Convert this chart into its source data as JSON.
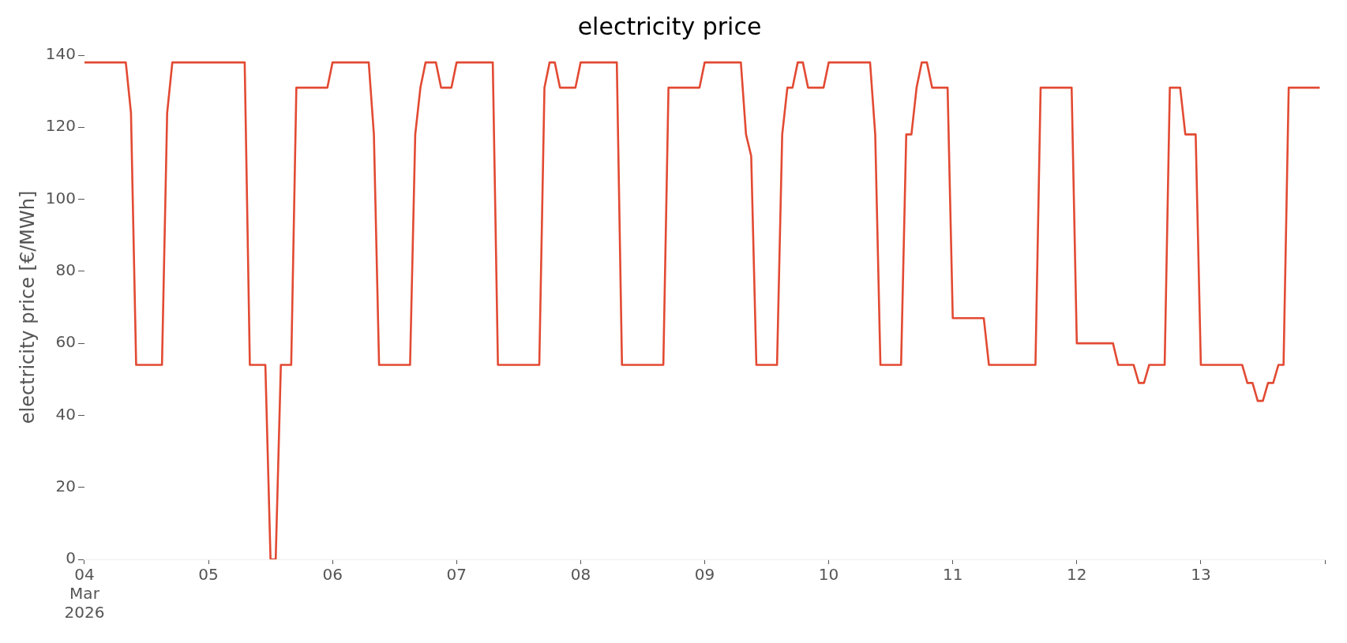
{
  "chart_data": {
    "type": "line",
    "title": "electricity price",
    "ylabel": "electricity price [€/MWh]",
    "color": "#e24a33",
    "x": [
      "2026-03-04T00:00",
      "2026-03-04T08:00",
      "2026-03-04T09:00",
      "2026-03-04T10:00",
      "2026-03-04T15:00",
      "2026-03-04T16:00",
      "2026-03-04T17:00",
      "2026-03-05T07:00",
      "2026-03-05T08:00",
      "2026-03-05T11:00",
      "2026-03-05T12:00",
      "2026-03-05T13:00",
      "2026-03-05T14:00",
      "2026-03-05T16:00",
      "2026-03-05T17:00",
      "2026-03-05T23:00",
      "2026-03-06T00:00",
      "2026-03-06T07:00",
      "2026-03-06T08:00",
      "2026-03-06T09:00",
      "2026-03-06T15:00",
      "2026-03-06T16:00",
      "2026-03-06T17:00",
      "2026-03-06T18:00",
      "2026-03-06T20:00",
      "2026-03-06T21:00",
      "2026-03-06T23:00",
      "2026-03-07T00:00",
      "2026-03-07T07:00",
      "2026-03-07T08:00",
      "2026-03-07T16:00",
      "2026-03-07T17:00",
      "2026-03-07T18:00",
      "2026-03-07T19:00",
      "2026-03-07T20:00",
      "2026-03-07T23:00",
      "2026-03-08T00:00",
      "2026-03-08T07:00",
      "2026-03-08T08:00",
      "2026-03-08T16:00",
      "2026-03-08T17:00",
      "2026-03-08T23:00",
      "2026-03-09T00:00",
      "2026-03-09T07:00",
      "2026-03-09T08:00",
      "2026-03-09T09:00",
      "2026-03-09T10:00",
      "2026-03-09T14:00",
      "2026-03-09T15:00",
      "2026-03-09T16:00",
      "2026-03-09T17:00",
      "2026-03-09T18:00",
      "2026-03-09T19:00",
      "2026-03-09T20:00",
      "2026-03-09T23:00",
      "2026-03-10T00:00",
      "2026-03-10T08:00",
      "2026-03-10T09:00",
      "2026-03-10T10:00",
      "2026-03-10T14:00",
      "2026-03-10T15:00",
      "2026-03-10T16:00",
      "2026-03-10T17:00",
      "2026-03-10T18:00",
      "2026-03-10T19:00",
      "2026-03-10T20:00",
      "2026-03-10T23:00",
      "2026-03-11T00:00",
      "2026-03-11T06:00",
      "2026-03-11T07:00",
      "2026-03-11T16:00",
      "2026-03-11T17:00",
      "2026-03-11T23:00",
      "2026-03-12T00:00",
      "2026-03-12T07:00",
      "2026-03-12T08:00",
      "2026-03-12T11:00",
      "2026-03-12T12:00",
      "2026-03-12T13:00",
      "2026-03-12T14:00",
      "2026-03-12T17:00",
      "2026-03-12T18:00",
      "2026-03-12T20:00",
      "2026-03-12T21:00",
      "2026-03-12T23:00",
      "2026-03-13T00:00",
      "2026-03-13T08:00",
      "2026-03-13T09:00",
      "2026-03-13T10:00",
      "2026-03-13T11:00",
      "2026-03-13T12:00",
      "2026-03-13T13:00",
      "2026-03-13T14:00",
      "2026-03-13T15:00",
      "2026-03-13T16:00",
      "2026-03-13T17:00",
      "2026-03-13T23:00"
    ],
    "values": [
      138,
      138,
      124,
      54,
      54,
      124,
      138,
      138,
      54,
      54,
      0,
      0,
      54,
      54,
      131,
      131,
      138,
      138,
      118,
      54,
      54,
      118,
      131,
      138,
      138,
      131,
      131,
      138,
      138,
      54,
      54,
      131,
      138,
      138,
      131,
      131,
      138,
      138,
      54,
      54,
      131,
      131,
      138,
      138,
      118,
      112,
      54,
      54,
      118,
      131,
      131,
      138,
      138,
      131,
      131,
      138,
      138,
      118,
      54,
      54,
      118,
      118,
      131,
      138,
      138,
      131,
      131,
      67,
      67,
      54,
      54,
      131,
      131,
      60,
      60,
      54,
      54,
      49,
      49,
      54,
      54,
      131,
      131,
      118,
      118,
      54,
      54,
      49,
      49,
      44,
      44,
      49,
      49,
      54,
      54,
      131,
      131
    ],
    "xlim": [
      "2026-03-04",
      "2026-03-14"
    ],
    "xticks": [
      {
        "value": "2026-03-04",
        "label": "04\nMar\n2026"
      },
      {
        "value": "2026-03-05",
        "label": "05"
      },
      {
        "value": "2026-03-06",
        "label": "06"
      },
      {
        "value": "2026-03-07",
        "label": "07"
      },
      {
        "value": "2026-03-08",
        "label": "08"
      },
      {
        "value": "2026-03-09",
        "label": "09"
      },
      {
        "value": "2026-03-10",
        "label": "10"
      },
      {
        "value": "2026-03-11",
        "label": "11"
      },
      {
        "value": "2026-03-12",
        "label": "12"
      },
      {
        "value": "2026-03-13",
        "label": "13"
      },
      {
        "value": "2026-03-14",
        "label": null
      }
    ],
    "ylim": [
      0,
      140
    ],
    "yticks": [
      0,
      20,
      40,
      60,
      80,
      100,
      120,
      140
    ],
    "grid": false,
    "legend": false,
    "marker": "none",
    "line_style": "solid"
  }
}
